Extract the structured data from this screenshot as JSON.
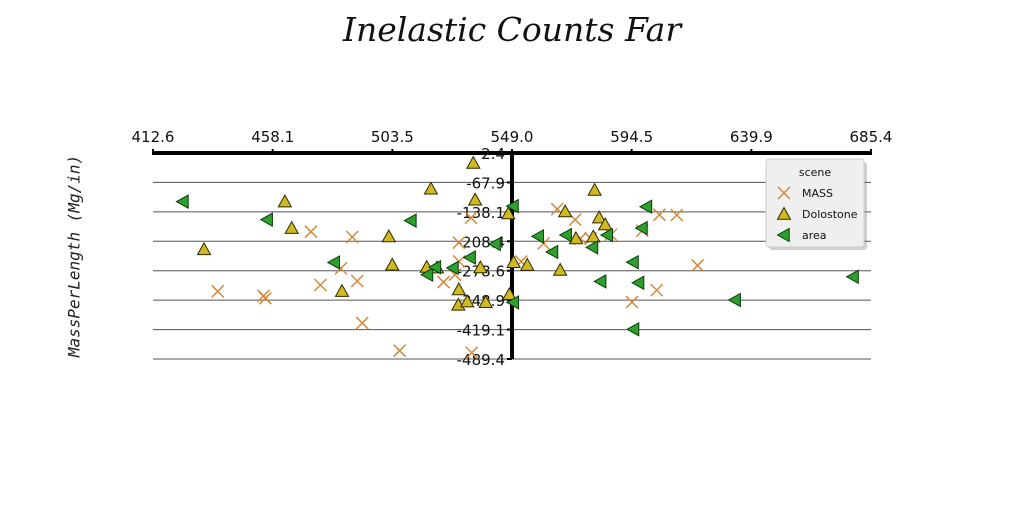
{
  "chart_data": {
    "type": "scatter",
    "title": "Inelastic Counts Far",
    "xlabel": "",
    "ylabel": "MassPerLength (Mg/in)",
    "x_ticks": [
      "412.6",
      "458.1",
      "503.5",
      "549.0",
      "594.5",
      "639.9",
      "685.4"
    ],
    "y_ticks": [
      "2.4",
      "-67.9",
      "-138.1",
      "-208.4",
      "-278.6",
      "-348.9",
      "-419.1",
      "-489.4"
    ],
    "xlim": [
      412.6,
      685.4
    ],
    "ylim": [
      -489.4,
      2.4
    ],
    "grid": "horizontal",
    "legend": {
      "title": "scene",
      "placement": "top-right"
    },
    "series": [
      {
        "name": "MASS",
        "marker": "x",
        "color": "#d18a3e",
        "points": [
          [
            437.2,
            -327.8
          ],
          [
            454.6,
            -338.5
          ],
          [
            455.3,
            -344.2
          ],
          [
            472.6,
            -185.5
          ],
          [
            476.2,
            -312.8
          ],
          [
            484.0,
            -273.1
          ],
          [
            488.3,
            -198.2
          ],
          [
            490.2,
            -303.2
          ],
          [
            492.1,
            -403.6
          ],
          [
            506.3,
            -469.6
          ],
          [
            523.0,
            -305.7
          ],
          [
            528.8,
            -211.7
          ],
          [
            528.9,
            -256.7
          ],
          [
            533.4,
            -152.3
          ],
          [
            533.7,
            -474.5
          ],
          [
            527.3,
            -288.1
          ],
          [
            552.5,
            -256.8
          ],
          [
            561.0,
            -213.7
          ],
          [
            566.2,
            -131.4
          ],
          [
            573.0,
            -156.6
          ],
          [
            575.0,
            -201.8
          ],
          [
            578.9,
            -201.5
          ],
          [
            586.6,
            -192.7
          ],
          [
            594.6,
            -353.4
          ],
          [
            598.5,
            -183.2
          ],
          [
            604.0,
            -324.9
          ],
          [
            605.0,
            -145.1
          ],
          [
            611.6,
            -145.6
          ],
          [
            619.5,
            -266.0
          ]
        ]
      },
      {
        "name": "Dolostone",
        "marker": "triangle-up",
        "color": "#d2b91f",
        "points": [
          [
            432.0,
            -227.7
          ],
          [
            462.7,
            -113.7
          ],
          [
            465.3,
            -177.0
          ],
          [
            484.4,
            -327.4
          ],
          [
            518.2,
            -83.2
          ],
          [
            502.2,
            -197.0
          ],
          [
            503.5,
            -264.6
          ],
          [
            516.6,
            -270.0
          ],
          [
            520.5,
            -271.4
          ],
          [
            537.0,
            -271.0
          ],
          [
            528.8,
            -323.6
          ],
          [
            528.6,
            -360.4
          ],
          [
            532.0,
            -352.4
          ],
          [
            534.3,
            -21.7
          ],
          [
            535.0,
            -109.3
          ],
          [
            539.0,
            -354.1
          ],
          [
            547.6,
            -142.3
          ],
          [
            548.0,
            -335.0
          ],
          [
            549.6,
            -258.4
          ],
          [
            554.8,
            -265.1
          ],
          [
            567.3,
            -277.1
          ],
          [
            569.2,
            -137.5
          ],
          [
            573.3,
            -201.7
          ],
          [
            579.9,
            -197.4
          ],
          [
            580.4,
            -86.2
          ],
          [
            582.1,
            -152.0
          ],
          [
            584.4,
            -168.4
          ]
        ]
      },
      {
        "name": "area",
        "marker": "triangle-left",
        "color": "#2ca02c",
        "points": [
          [
            424.0,
            -113.6
          ],
          [
            456.0,
            -156.7
          ],
          [
            481.5,
            -258.9
          ],
          [
            510.6,
            -159.0
          ],
          [
            516.9,
            -288.0
          ],
          [
            519.9,
            -270.3
          ],
          [
            526.6,
            -271.9
          ],
          [
            533.1,
            -247.1
          ],
          [
            542.6,
            -215.0
          ],
          [
            549.4,
            -124.5
          ],
          [
            549.5,
            -354.4
          ],
          [
            559.0,
            -196.6
          ],
          [
            564.4,
            -233.8
          ],
          [
            569.6,
            -193.5
          ],
          [
            579.6,
            -223.0
          ],
          [
            582.7,
            -304.1
          ],
          [
            585.2,
            -193.5
          ],
          [
            595.0,
            -258.4
          ],
          [
            597.1,
            -307.4
          ],
          [
            600.1,
            -125.8
          ],
          [
            598.4,
            -176.9
          ],
          [
            595.2,
            -418.5
          ],
          [
            633.8,
            -348.5
          ],
          [
            678.6,
            -293.1
          ]
        ]
      }
    ]
  }
}
